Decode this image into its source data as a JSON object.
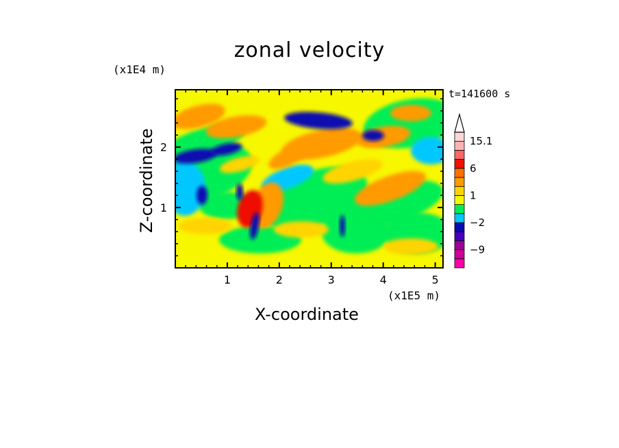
{
  "chart_data": {
    "type": "heatmap",
    "title": "zonal velocity",
    "xlabel": "X-coordinate",
    "ylabel": "Z-coordinate",
    "x_multiplier": "(x1E5 m)",
    "y_multiplier": "(x1E4 m)",
    "time_label": "t=141600 s",
    "xlim": [
      0,
      5.15
    ],
    "ylim": [
      0,
      2.95
    ],
    "x_ticks": [
      "1",
      "2",
      "3",
      "4",
      "5"
    ],
    "y_ticks": [
      "1",
      "2"
    ],
    "colorbar": {
      "labels": [
        "15.1",
        "6",
        "1",
        "−2",
        "−9"
      ],
      "colors": [
        "#ff00aa",
        "#cc0099",
        "#990099",
        "#4400bb",
        "#0a0ab0",
        "#00c8ff",
        "#00ee55",
        "#f7f700",
        "#ffd400",
        "#ff9a00",
        "#ff7000",
        "#ee1100",
        "#ff6666",
        "#ffb3b3",
        "#ffd6d6"
      ]
    },
    "features": [
      {
        "x": 0.35,
        "z": 1.85,
        "v": "negative"
      },
      {
        "x": 3.0,
        "z": 2.4,
        "v": "negative"
      },
      {
        "x": 3.6,
        "z": 2.15,
        "v": "negative"
      },
      {
        "x": 2.6,
        "z": 2.05,
        "v": "positive"
      },
      {
        "x": 4.1,
        "z": 1.35,
        "v": "positive"
      },
      {
        "x": 1.45,
        "z": 1.05,
        "v": "positive"
      }
    ]
  }
}
